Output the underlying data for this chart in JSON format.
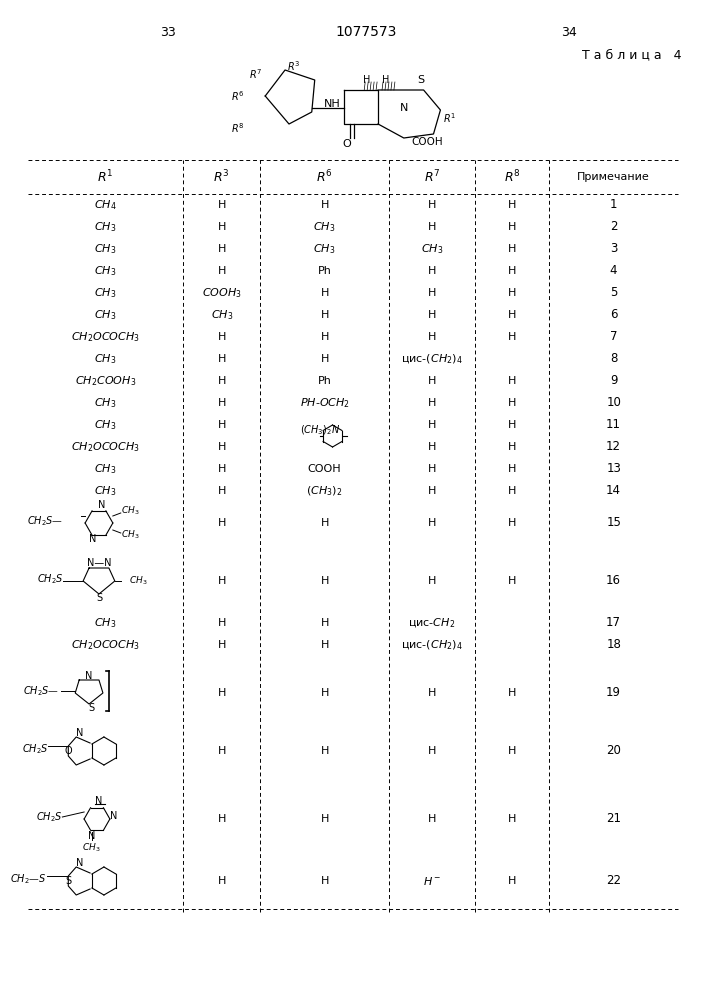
{
  "page_num_left": "33",
  "page_num_right": "34",
  "patent_number": "1077573",
  "table_title": "Т а б л и ц а   4",
  "col_headers": [
    "R1",
    "R3",
    "R6",
    "R7",
    "R8",
    "Примечание"
  ],
  "background_color": "#ffffff"
}
